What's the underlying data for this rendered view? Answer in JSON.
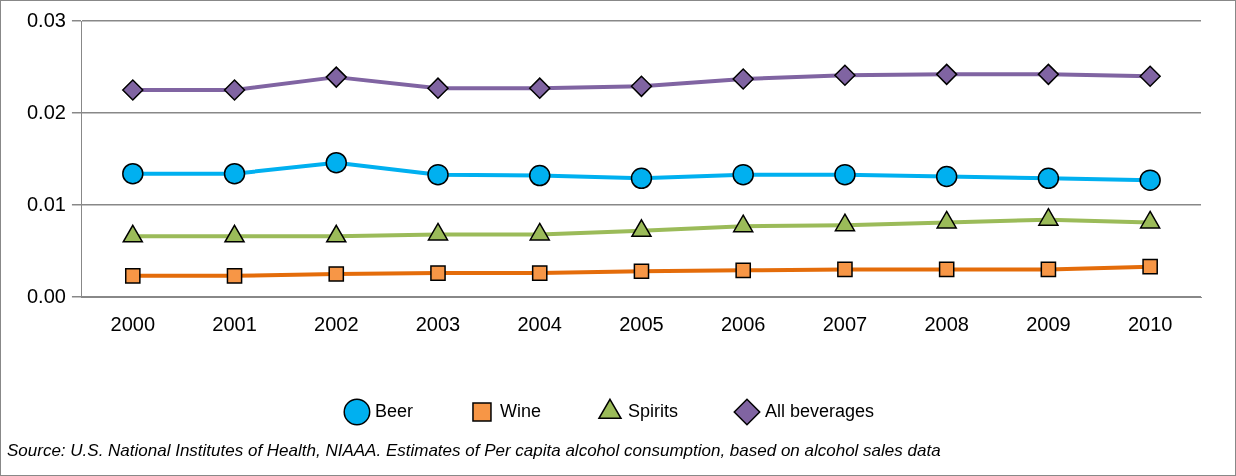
{
  "chart_data": {
    "type": "line",
    "categories": [
      "2000",
      "2001",
      "2002",
      "2003",
      "2004",
      "2005",
      "2006",
      "2007",
      "2008",
      "2009",
      "2010"
    ],
    "series": [
      {
        "name": "Beer",
        "color": "#00b0f0",
        "marker": "circle",
        "values": [
          0.0134,
          0.0134,
          0.0146,
          0.0133,
          0.0132,
          0.0129,
          0.0133,
          0.0133,
          0.0131,
          0.0129,
          0.0127
        ]
      },
      {
        "name": "Wine",
        "color": "#e46c0a",
        "marker": "square",
        "values": [
          0.0023,
          0.0023,
          0.0025,
          0.0026,
          0.0026,
          0.0028,
          0.0029,
          0.003,
          0.003,
          0.003,
          0.0033
        ]
      },
      {
        "name": "Spirits",
        "color": "#9bbb59",
        "marker": "triangle",
        "values": [
          0.0066,
          0.0066,
          0.0066,
          0.0068,
          0.0068,
          0.0072,
          0.0077,
          0.0078,
          0.0081,
          0.0084,
          0.0081
        ]
      },
      {
        "name": "All beverages",
        "color": "#8064a2",
        "marker": "diamond",
        "values": [
          0.0225,
          0.0225,
          0.0239,
          0.0227,
          0.0227,
          0.0229,
          0.0237,
          0.0241,
          0.0242,
          0.0242,
          0.024
        ]
      }
    ],
    "ylim": [
      0,
      0.03
    ],
    "yticks": [
      {
        "value": 0,
        "label": "0.00"
      },
      0.01,
      0.02,
      0.03
    ],
    "grid": "y",
    "legend": "bottom",
    "annotations": [
      "Source: U.S. National Institutes of Health, NIAAA. Estimates of Per capita alcohol consumption, based on alcohol sales data"
    ]
  }
}
